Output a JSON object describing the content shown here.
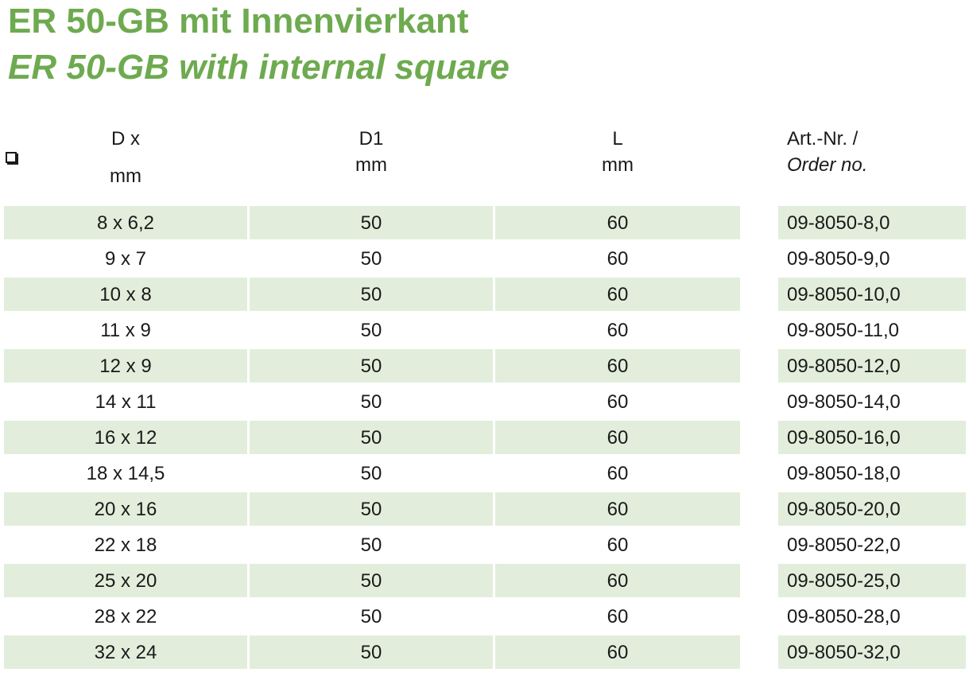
{
  "title": {
    "german": "ER 50-GB mit Innenvierkant",
    "english": "ER 50-GB with internal square"
  },
  "colors": {
    "title_green": "#6eaa4f",
    "row_shade": "#e2eedb",
    "text": "#1a1a1a"
  },
  "columns": {
    "d": {
      "line1": "D x",
      "icon": "square-symbol-icon",
      "line2": "mm"
    },
    "d1": {
      "line1": "D1",
      "line2": "mm"
    },
    "l": {
      "line1": "L",
      "line2": "mm"
    },
    "art": {
      "line1": "Art.-Nr. /",
      "line2": "Order no."
    }
  },
  "rows": [
    {
      "d": "8 x 6,2",
      "d1": "50",
      "l": "60",
      "art": "09-8050-8,0"
    },
    {
      "d": "9 x 7",
      "d1": "50",
      "l": "60",
      "art": "09-8050-9,0"
    },
    {
      "d": "10 x 8",
      "d1": "50",
      "l": "60",
      "art": "09-8050-10,0"
    },
    {
      "d": "11 x 9",
      "d1": "50",
      "l": "60",
      "art": "09-8050-11,0"
    },
    {
      "d": "12 x 9",
      "d1": "50",
      "l": "60",
      "art": "09-8050-12,0"
    },
    {
      "d": "14 x 11",
      "d1": "50",
      "l": "60",
      "art": "09-8050-14,0"
    },
    {
      "d": "16 x 12",
      "d1": "50",
      "l": "60",
      "art": "09-8050-16,0"
    },
    {
      "d": "18 x 14,5",
      "d1": "50",
      "l": "60",
      "art": "09-8050-18,0"
    },
    {
      "d": "20 x 16",
      "d1": "50",
      "l": "60",
      "art": "09-8050-20,0"
    },
    {
      "d": "22 x 18",
      "d1": "50",
      "l": "60",
      "art": "09-8050-22,0"
    },
    {
      "d": "25 x 20",
      "d1": "50",
      "l": "60",
      "art": "09-8050-25,0"
    },
    {
      "d": "28 x 22",
      "d1": "50",
      "l": "60",
      "art": "09-8050-28,0"
    },
    {
      "d": "32 x 24",
      "d1": "50",
      "l": "60",
      "art": "09-8050-32,0"
    }
  ]
}
